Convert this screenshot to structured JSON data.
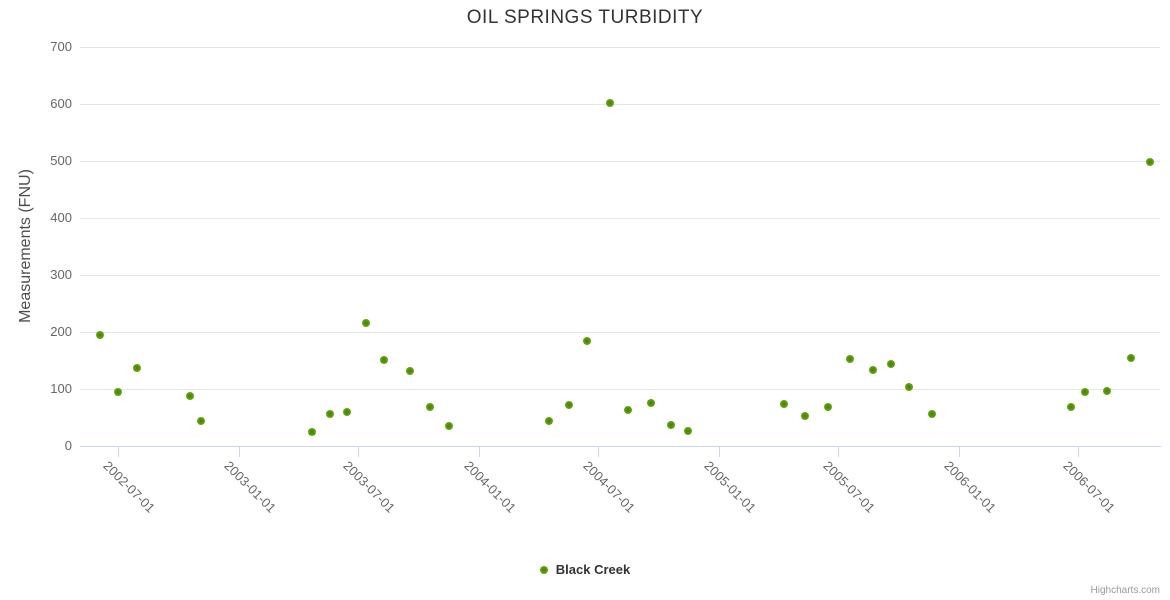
{
  "chart": {
    "title": "OIL SPRINGS TURBIDITY",
    "credits_label": "Highcharts.com"
  },
  "legend": {
    "label": "Black Creek"
  },
  "colors": {
    "series_green_outer": "#77b827",
    "series_green_inner": "#447d06",
    "gridline": "#e6e6e6",
    "axis_line": "#ccd6eb",
    "title_text": "#333333",
    "tick_text": "#666666",
    "credits_text": "#999999"
  },
  "chart_data": {
    "type": "scatter",
    "title": "OIL SPRINGS TURBIDITY",
    "xlabel": "",
    "ylabel": "Measurements (FNU)",
    "legend_position": "bottom-center",
    "grid": true,
    "ylim": [
      0,
      700
    ],
    "y_ticks": [
      0,
      100,
      200,
      300,
      400,
      500,
      600,
      700
    ],
    "xlim": [
      "2002-05-04",
      "2006-11-03"
    ],
    "x_ticks": [
      "2002-07-01",
      "2003-01-01",
      "2003-07-01",
      "2004-01-01",
      "2004-07-01",
      "2005-01-01",
      "2005-07-01",
      "2006-01-01",
      "2006-07-01"
    ],
    "series": [
      {
        "name": "Black Creek",
        "color": "#5d9c0d",
        "points": [
          [
            "2002-06-04",
            195
          ],
          [
            "2002-07-01",
            95
          ],
          [
            "2002-07-29",
            137
          ],
          [
            "2002-10-19",
            87
          ],
          [
            "2002-11-04",
            44
          ],
          [
            "2003-04-22",
            25
          ],
          [
            "2003-05-19",
            57
          ],
          [
            "2003-06-14",
            59
          ],
          [
            "2003-07-13",
            215
          ],
          [
            "2003-08-10",
            151
          ],
          [
            "2003-09-18",
            132
          ],
          [
            "2003-10-19",
            69
          ],
          [
            "2003-11-17",
            36
          ],
          [
            "2004-04-17",
            44
          ],
          [
            "2004-05-17",
            72
          ],
          [
            "2004-06-14",
            185
          ],
          [
            "2004-07-19",
            601
          ],
          [
            "2004-08-15",
            63
          ],
          [
            "2004-09-19",
            75
          ],
          [
            "2004-10-19",
            37
          ],
          [
            "2004-11-15",
            27
          ],
          [
            "2005-04-10",
            74
          ],
          [
            "2005-05-12",
            52
          ],
          [
            "2005-06-15",
            68
          ],
          [
            "2005-07-19",
            152
          ],
          [
            "2005-08-23",
            134
          ],
          [
            "2005-09-20",
            144
          ],
          [
            "2005-10-17",
            103
          ],
          [
            "2005-11-21",
            57
          ],
          [
            "2006-06-20",
            68
          ],
          [
            "2006-07-12",
            95
          ],
          [
            "2006-08-15",
            97
          ],
          [
            "2006-09-20",
            155
          ],
          [
            "2006-10-18",
            499
          ]
        ]
      }
    ]
  }
}
